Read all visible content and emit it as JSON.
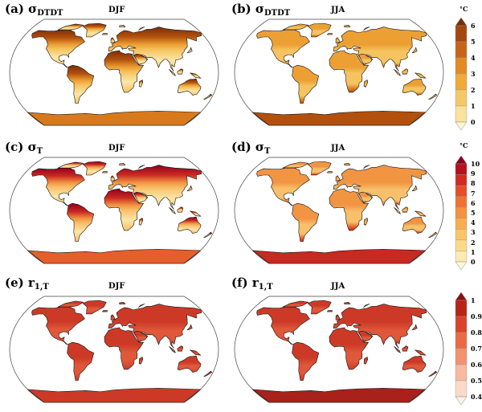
{
  "panels": [
    {
      "id": "a",
      "label": "(a)",
      "symbol": "σ",
      "sub": "DTDT",
      "season": "DJF",
      "palette": "sdtdt",
      "warm": "high-lat-nh"
    },
    {
      "id": "b",
      "label": "(b)",
      "symbol": "σ",
      "sub": "DTDT",
      "season": "JJA",
      "palette": "sdtdt",
      "warm": "uniform"
    },
    {
      "id": "c",
      "label": "(c)",
      "symbol": "σ",
      "sub": "T",
      "season": "DJF",
      "palette": "st",
      "warm": "high-lat-nh"
    },
    {
      "id": "d",
      "label": "(d)",
      "symbol": "σ",
      "sub": "T",
      "season": "JJA",
      "palette": "st",
      "warm": "uniform"
    },
    {
      "id": "e",
      "label": "(e)",
      "symbol": "r",
      "sub": "1,T",
      "season": "DJF",
      "palette": "r1t",
      "warm": "corr"
    },
    {
      "id": "f",
      "label": "(f)",
      "symbol": "r",
      "sub": "1,T",
      "season": "JJA",
      "palette": "r1t",
      "warm": "corr"
    }
  ],
  "colorbars": [
    {
      "unit": "°C",
      "ticks": [
        "6",
        "5",
        "4",
        "3",
        "2",
        "1",
        "0"
      ],
      "colors": [
        "#7a2e0a",
        "#a5480f",
        "#c86416",
        "#e38a22",
        "#efaa3a",
        "#f5c768",
        "#fae19c",
        "#fff6d6"
      ]
    },
    {
      "unit": "°C",
      "ticks": [
        "10",
        "9",
        "8",
        "7",
        "6",
        "5",
        "4",
        "3",
        "2",
        "1",
        "0"
      ],
      "colors": [
        "#8e0020",
        "#b5121e",
        "#d32a22",
        "#e84c29",
        "#f07233",
        "#f5923f",
        "#f8ae4e",
        "#fac565",
        "#fcd987",
        "#fdeaaf",
        "#fff7dc"
      ]
    },
    {
      "unit": "",
      "ticks": [
        "1",
        "0.9",
        "0.8",
        "0.7",
        "0.6",
        "0.5",
        "0.4"
      ],
      "colors": [
        "#8e1010",
        "#b82417",
        "#d8432a",
        "#ea6a45",
        "#f39270",
        "#f7b9a0",
        "#fadbca",
        "#fdf1ea"
      ]
    }
  ]
}
